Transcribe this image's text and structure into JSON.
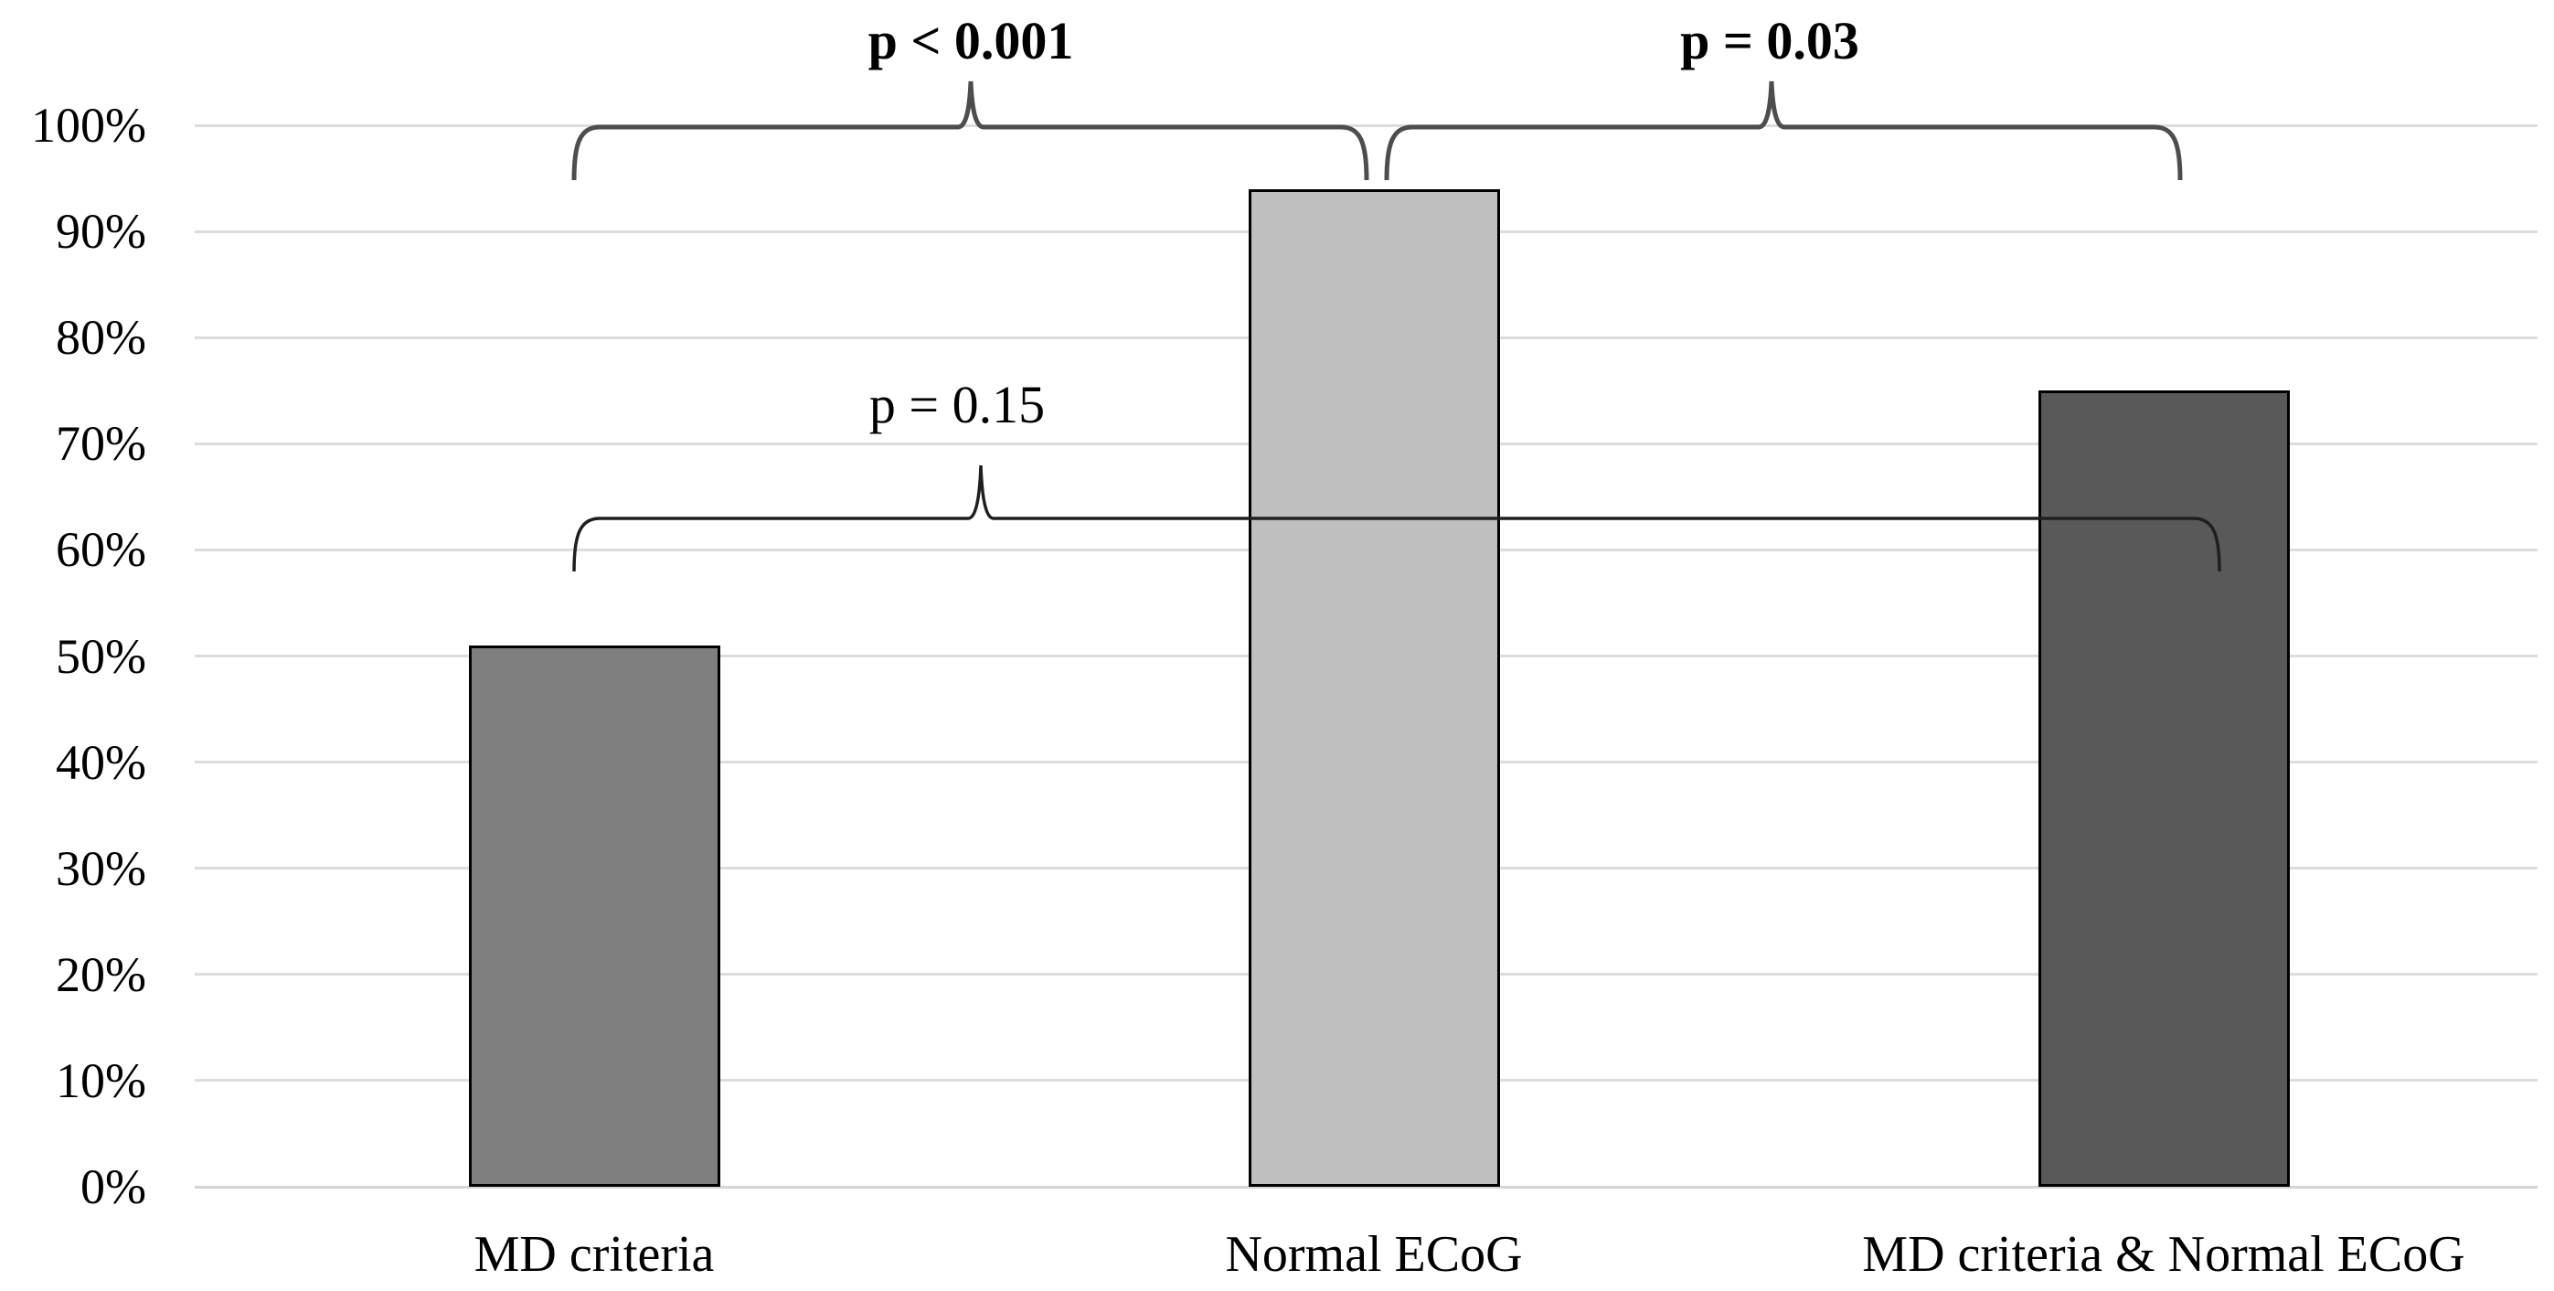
{
  "chart_data": {
    "type": "bar",
    "title": "",
    "xlabel": "",
    "ylabel": "",
    "categories": [
      "MD criteria",
      "Normal ECoG",
      "MD criteria & Normal ECoG"
    ],
    "values": [
      51,
      94,
      75
    ],
    "value_unit": "%",
    "ylim": [
      0,
      100
    ],
    "ytick_step": 10,
    "ytick_labels": [
      "0%",
      "10%",
      "20%",
      "30%",
      "40%",
      "50%",
      "60%",
      "70%",
      "80%",
      "90%",
      "100%"
    ],
    "grid": "horizontal",
    "legend": "none",
    "bar_colors": [
      "#7F7F7F",
      "#BFBFBF",
      "#595959"
    ],
    "bar_border_color": "#000000",
    "gridline_color": "#DCDCDC",
    "significance_brackets": [
      {
        "label": "p < 0.001",
        "from": "MD criteria",
        "to": "Normal ECoG",
        "bold": true
      },
      {
        "label": "p = 0.03",
        "from": "Normal ECoG",
        "to": "MD criteria & Normal ECoG",
        "bold": true
      },
      {
        "label": "p = 0.15",
        "from": "MD criteria",
        "to": "MD criteria & Normal ECoG",
        "bold": false
      }
    ]
  }
}
